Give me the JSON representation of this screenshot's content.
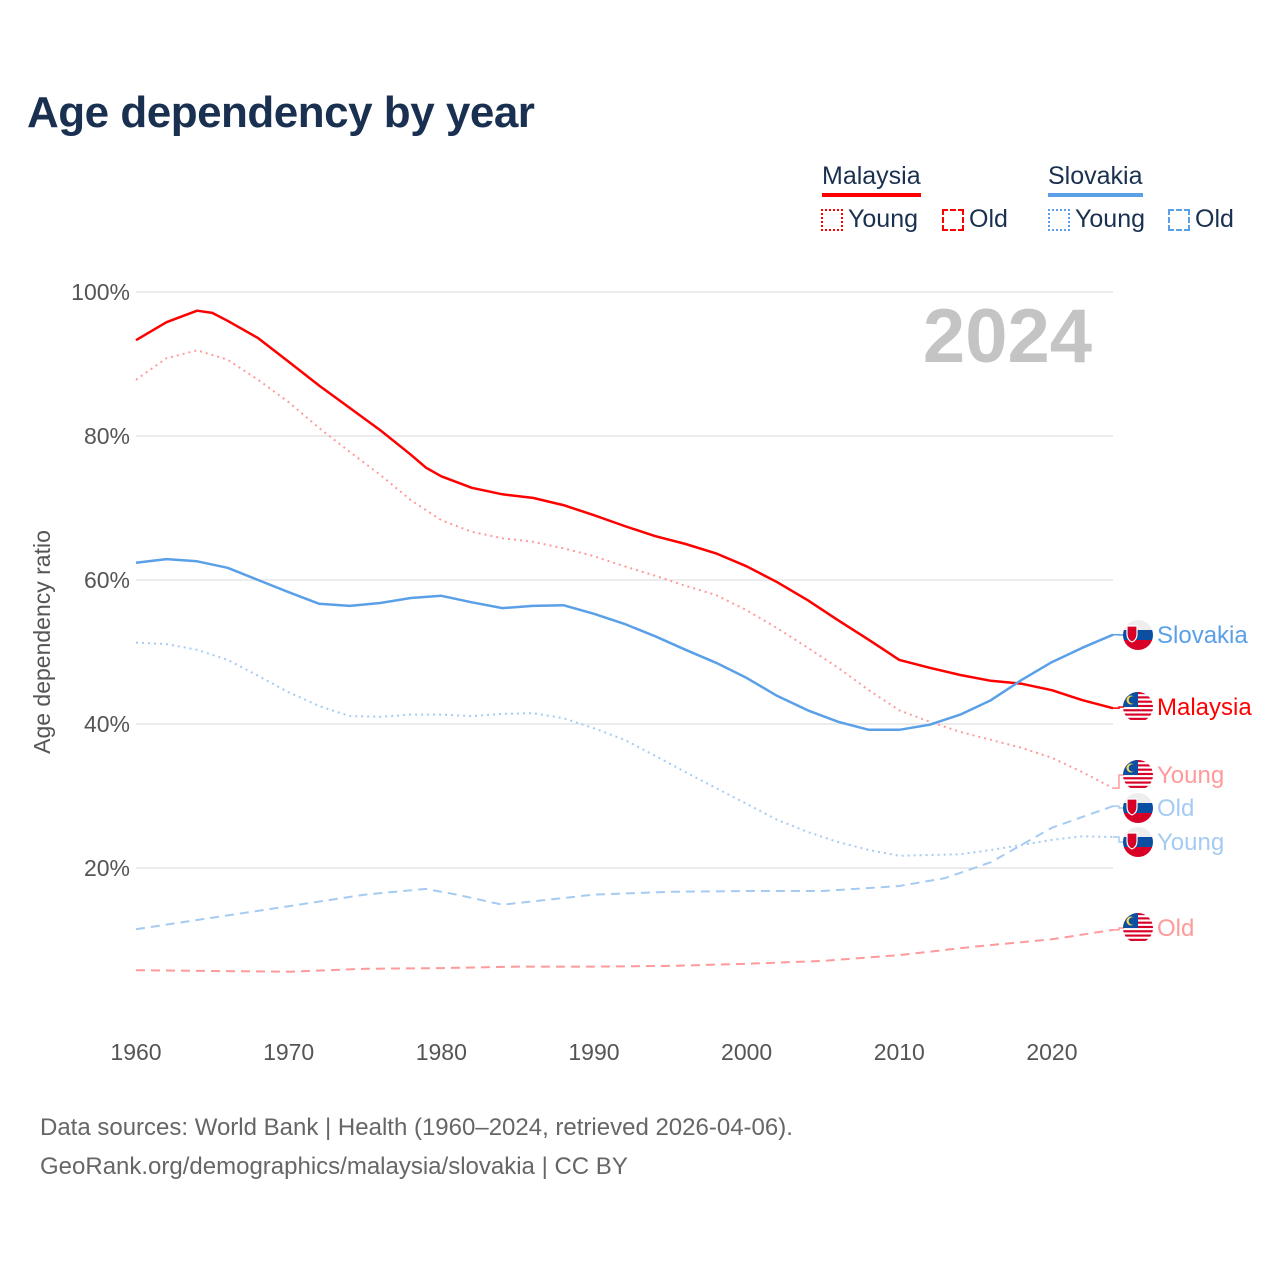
{
  "title": "Age dependency by year",
  "legend": {
    "countries": [
      {
        "name": "Malaysia",
        "color": "#ff0000",
        "items": [
          "Young",
          "Old"
        ]
      },
      {
        "name": "Slovakia",
        "color": "#5aa0e8",
        "items": [
          "Young",
          "Old"
        ]
      }
    ]
  },
  "footer": {
    "line1": "Data sources: World Bank | Health (1960–2024, retrieved 2026-04-06).",
    "line2": "GeoRank.org/demographics/malaysia/slovakia | CC BY"
  },
  "chart_data": {
    "type": "line",
    "title": "Age dependency by year",
    "year_label": "2024",
    "ylabel": "Age dependency ratio",
    "xlabel": "",
    "xlim": [
      1960,
      2024
    ],
    "ylim": [
      0,
      100
    ],
    "x_ticks": [
      "1960",
      "1970",
      "1980",
      "1990",
      "2000",
      "2010",
      "2020"
    ],
    "y_ticks": [
      "20%",
      "40%",
      "60%",
      "80%",
      "100%"
    ],
    "grid": true,
    "series": [
      {
        "name": "Malaysia",
        "end_label": "Malaysia",
        "country": "Malaysia",
        "kind": "total",
        "color": "#ff0000",
        "style": "solid",
        "points": [
          [
            1960,
            93.3
          ],
          [
            1962,
            95.8
          ],
          [
            1964,
            97.4
          ],
          [
            1965,
            97.1
          ],
          [
            1966,
            96
          ],
          [
            1968,
            93.6
          ],
          [
            1970,
            90.3
          ],
          [
            1972,
            87
          ],
          [
            1974,
            83.9
          ],
          [
            1976,
            80.8
          ],
          [
            1978,
            77.4
          ],
          [
            1979,
            75.6
          ],
          [
            1980,
            74.4
          ],
          [
            1982,
            72.8
          ],
          [
            1984,
            71.9
          ],
          [
            1986,
            71.4
          ],
          [
            1988,
            70.4
          ],
          [
            1990,
            69
          ],
          [
            1992,
            67.5
          ],
          [
            1994,
            66.1
          ],
          [
            1996,
            65
          ],
          [
            1998,
            63.7
          ],
          [
            2000,
            61.9
          ],
          [
            2002,
            59.7
          ],
          [
            2004,
            57.2
          ],
          [
            2006,
            54.4
          ],
          [
            2008,
            51.7
          ],
          [
            2010,
            48.9
          ],
          [
            2012,
            47.8
          ],
          [
            2014,
            46.8
          ],
          [
            2016,
            46
          ],
          [
            2018,
            45.6
          ],
          [
            2020,
            44.7
          ],
          [
            2022,
            43.3
          ],
          [
            2024,
            42.2
          ]
        ]
      },
      {
        "name": "Malaysia Young",
        "end_label": "Young",
        "country": "Malaysia",
        "kind": "young",
        "color": "#ff9a9a",
        "style": "dotted",
        "points": [
          [
            1960,
            87.8
          ],
          [
            1962,
            90.8
          ],
          [
            1964,
            91.9
          ],
          [
            1966,
            90.6
          ],
          [
            1968,
            87.8
          ],
          [
            1970,
            84.7
          ],
          [
            1972,
            81.1
          ],
          [
            1974,
            77.8
          ],
          [
            1976,
            74.6
          ],
          [
            1978,
            71.1
          ],
          [
            1980,
            68.3
          ],
          [
            1982,
            66.7
          ],
          [
            1984,
            65.8
          ],
          [
            1986,
            65.3
          ],
          [
            1988,
            64.4
          ],
          [
            1990,
            63.3
          ],
          [
            1992,
            61.9
          ],
          [
            1994,
            60.6
          ],
          [
            1996,
            59.2
          ],
          [
            1998,
            57.9
          ],
          [
            2000,
            55.8
          ],
          [
            2002,
            53.3
          ],
          [
            2004,
            50.6
          ],
          [
            2006,
            47.8
          ],
          [
            2008,
            44.7
          ],
          [
            2010,
            41.9
          ],
          [
            2012,
            40.3
          ],
          [
            2014,
            38.9
          ],
          [
            2016,
            37.8
          ],
          [
            2018,
            36.7
          ],
          [
            2020,
            35.3
          ],
          [
            2022,
            33.3
          ],
          [
            2024,
            31.1
          ]
        ]
      },
      {
        "name": "Malaysia Old",
        "end_label": "Old",
        "country": "Malaysia",
        "kind": "old",
        "color": "#ff9a9a",
        "style": "dashed",
        "points": [
          [
            1960,
            5.8
          ],
          [
            1965,
            5.7
          ],
          [
            1970,
            5.6
          ],
          [
            1975,
            6
          ],
          [
            1980,
            6.1
          ],
          [
            1985,
            6.3
          ],
          [
            1990,
            6.3
          ],
          [
            1995,
            6.4
          ],
          [
            2000,
            6.7
          ],
          [
            2005,
            7.1
          ],
          [
            2010,
            7.9
          ],
          [
            2015,
            9.1
          ],
          [
            2020,
            10.1
          ],
          [
            2024,
            11.4
          ]
        ]
      },
      {
        "name": "Slovakia",
        "end_label": "Slovakia",
        "country": "Slovakia",
        "kind": "total",
        "color": "#5aa0e8",
        "style": "solid",
        "points": [
          [
            1960,
            62.4
          ],
          [
            1962,
            62.9
          ],
          [
            1964,
            62.6
          ],
          [
            1966,
            61.7
          ],
          [
            1968,
            60
          ],
          [
            1970,
            58.3
          ],
          [
            1972,
            56.7
          ],
          [
            1974,
            56.4
          ],
          [
            1976,
            56.8
          ],
          [
            1978,
            57.5
          ],
          [
            1980,
            57.8
          ],
          [
            1982,
            56.9
          ],
          [
            1984,
            56.1
          ],
          [
            1986,
            56.4
          ],
          [
            1988,
            56.5
          ],
          [
            1990,
            55.3
          ],
          [
            1992,
            53.9
          ],
          [
            1994,
            52.2
          ],
          [
            1996,
            50.3
          ],
          [
            1998,
            48.5
          ],
          [
            2000,
            46.4
          ],
          [
            2002,
            43.9
          ],
          [
            2004,
            41.9
          ],
          [
            2006,
            40.3
          ],
          [
            2008,
            39.2
          ],
          [
            2010,
            39.2
          ],
          [
            2012,
            39.9
          ],
          [
            2014,
            41.3
          ],
          [
            2016,
            43.3
          ],
          [
            2018,
            46.1
          ],
          [
            2020,
            48.6
          ],
          [
            2022,
            50.6
          ],
          [
            2024,
            52.4
          ]
        ]
      },
      {
        "name": "Slovakia Young",
        "end_label": "Young",
        "country": "Slovakia",
        "kind": "young",
        "color": "#a6cbf2",
        "style": "dotted",
        "points": [
          [
            1960,
            51.3
          ],
          [
            1962,
            51.1
          ],
          [
            1964,
            50.3
          ],
          [
            1966,
            48.9
          ],
          [
            1968,
            46.7
          ],
          [
            1970,
            44.4
          ],
          [
            1972,
            42.5
          ],
          [
            1974,
            41.1
          ],
          [
            1976,
            41
          ],
          [
            1978,
            41.3
          ],
          [
            1980,
            41.3
          ],
          [
            1982,
            41.1
          ],
          [
            1984,
            41.4
          ],
          [
            1986,
            41.5
          ],
          [
            1988,
            40.8
          ],
          [
            1990,
            39.4
          ],
          [
            1992,
            37.8
          ],
          [
            1994,
            35.6
          ],
          [
            1996,
            33.3
          ],
          [
            1998,
            31.1
          ],
          [
            2000,
            28.9
          ],
          [
            2002,
            26.7
          ],
          [
            2004,
            25
          ],
          [
            2006,
            23.6
          ],
          [
            2008,
            22.5
          ],
          [
            2010,
            21.7
          ],
          [
            2012,
            21.8
          ],
          [
            2014,
            21.9
          ],
          [
            2016,
            22.5
          ],
          [
            2018,
            23.2
          ],
          [
            2020,
            23.9
          ],
          [
            2022,
            24.4
          ],
          [
            2024,
            24.3
          ]
        ]
      },
      {
        "name": "Slovakia Old",
        "end_label": "Old",
        "country": "Slovakia",
        "kind": "old",
        "color": "#a6cbf2",
        "style": "dashed",
        "points": [
          [
            1960,
            11.5
          ],
          [
            1965,
            13.1
          ],
          [
            1970,
            14.7
          ],
          [
            1975,
            16.3
          ],
          [
            1979,
            17.1
          ],
          [
            1981,
            16.3
          ],
          [
            1984,
            14.9
          ],
          [
            1987,
            15.6
          ],
          [
            1990,
            16.3
          ],
          [
            1995,
            16.7
          ],
          [
            2000,
            16.8
          ],
          [
            2005,
            16.8
          ],
          [
            2010,
            17.5
          ],
          [
            2013,
            18.6
          ],
          [
            2016,
            20.8
          ],
          [
            2020,
            25.6
          ],
          [
            2024,
            28.6
          ]
        ]
      }
    ]
  }
}
